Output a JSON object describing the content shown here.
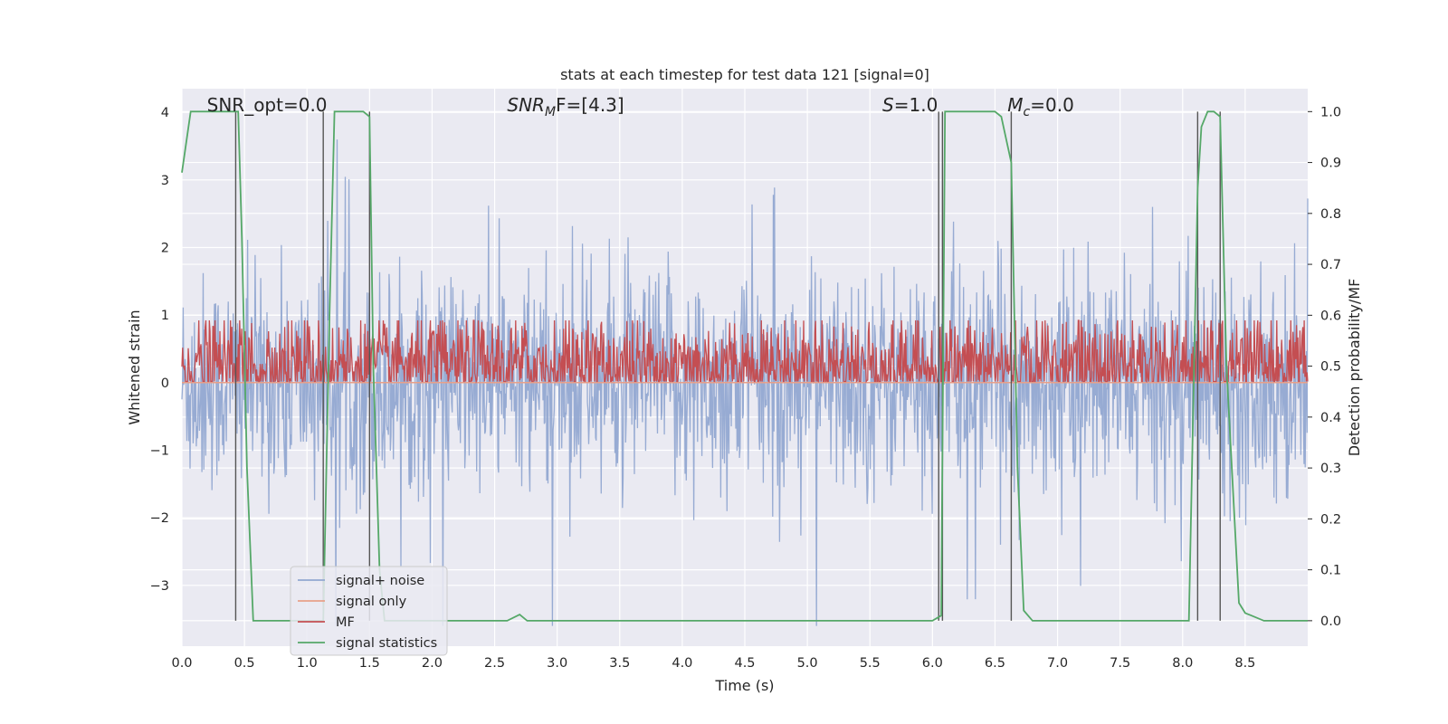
{
  "chart_data": {
    "type": "line",
    "title": "stats at each timestep for test data 121 [signal=0]",
    "xlabel": "Time (s)",
    "ylabel_left": "Whitened strain",
    "ylabel_right": "Detection probability/MF",
    "xlim": [
      0.0,
      9.0
    ],
    "ylim_left": [
      -3.9,
      4.35
    ],
    "ylim_right": [
      -0.05,
      1.045
    ],
    "x_ticks": [
      "0.0",
      "0.5",
      "1.0",
      "1.5",
      "2.0",
      "2.5",
      "3.0",
      "3.5",
      "4.0",
      "4.5",
      "5.0",
      "5.5",
      "6.0",
      "6.5",
      "7.0",
      "7.5",
      "8.0",
      "8.5"
    ],
    "y_ticks_left": [
      "4",
      "3",
      "2",
      "1",
      "0",
      "−1",
      "−2",
      "−3"
    ],
    "y_ticks_right": [
      "1.0",
      "0.9",
      "0.8",
      "0.7",
      "0.6",
      "0.5",
      "0.4",
      "0.3",
      "0.2",
      "0.1",
      "0.0"
    ],
    "grid": true,
    "legend_position": "lower-left",
    "annotations": [
      {
        "text": "SNR_opt=0.0",
        "x": 0.2
      },
      {
        "text": "SNR",
        "sub": "M",
        "after": "F=[4.3]",
        "x": 2.6
      },
      {
        "text": "S",
        "after": "=1.0",
        "x": 5.6
      },
      {
        "text": "M",
        "sub": "c",
        "after": "=0.0",
        "x": 6.6
      }
    ],
    "vertical_lines_x": [
      0.43,
      1.13,
      1.5,
      6.05,
      6.08,
      6.63,
      8.12,
      8.3
    ],
    "series": [
      {
        "name": "signal+ noise",
        "color": "#92a8d1",
        "axis": "left",
        "description_stats": {
          "core_sigma": 1.0,
          "x_range": [
            0,
            9
          ],
          "y_max": 3.85,
          "y_min": -3.6
        }
      },
      {
        "name": "signal only",
        "color": "#e8a089",
        "axis": "left",
        "constant": 0.0
      },
      {
        "name": "MF",
        "color": "#c44e52",
        "axis": "right",
        "center": 0.5,
        "spread": 0.05
      },
      {
        "name": "signal statistics",
        "color": "#55a868",
        "axis": "right",
        "x": [
          0.0,
          0.07,
          0.1,
          0.42,
          0.45,
          0.48,
          0.52,
          0.57,
          1.1,
          1.13,
          1.18,
          1.22,
          1.45,
          1.5,
          1.53,
          1.58,
          1.62,
          2.6,
          2.7,
          2.76,
          6.0,
          6.07,
          6.1,
          6.13,
          6.5,
          6.55,
          6.63,
          6.68,
          6.73,
          6.8,
          8.05,
          8.12,
          8.15,
          8.2,
          8.25,
          8.3,
          8.35,
          8.45,
          8.5,
          8.55,
          8.65,
          9.0
        ],
        "y": [
          0.88,
          1.0,
          1.0,
          1.0,
          1.0,
          0.75,
          0.3,
          0.0,
          0.0,
          0.0,
          0.6,
          1.0,
          1.0,
          0.99,
          0.5,
          0.1,
          0.0,
          0.0,
          0.012,
          0.0,
          0.0,
          0.01,
          1.0,
          1.0,
          1.0,
          0.99,
          0.9,
          0.3,
          0.02,
          0.0,
          0.0,
          0.85,
          0.97,
          1.0,
          1.0,
          0.99,
          0.5,
          0.035,
          0.015,
          0.01,
          0.0,
          0.0
        ]
      }
    ]
  }
}
